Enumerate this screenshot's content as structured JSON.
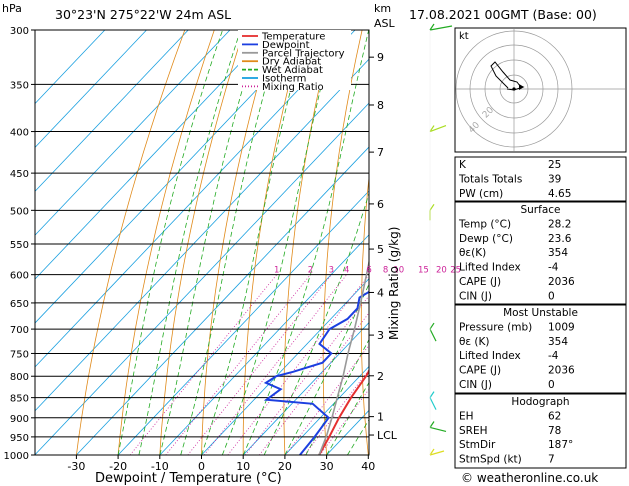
{
  "header": {
    "location": "30°23'N  275°22'W  24m  ASL",
    "datetime": "17.08.2021  00GMT  (Base: 00)",
    "p_unit": "hPa",
    "km_unit": "km",
    "asl_label": "ASL"
  },
  "footer": {
    "credit": "© weatheronline.co.uk"
  },
  "chart_data": {
    "type": "line",
    "title": "",
    "xlabel": "Dewpoint / Temperature (°C)",
    "ylabel": "",
    "right_axis_label": "Mixing Ratio (g/kg)",
    "x_ticks": [
      -30,
      -20,
      -10,
      0,
      10,
      20,
      30,
      40
    ],
    "xlim": [
      -35,
      40
    ],
    "pressure_levels": [
      300,
      350,
      400,
      450,
      500,
      550,
      600,
      650,
      700,
      750,
      800,
      850,
      900,
      950,
      1000
    ],
    "ylim": [
      1000,
      300
    ],
    "y_scale": "log",
    "km_ticks": [
      {
        "label": "9",
        "p": 324
      },
      {
        "label": "8",
        "p": 371
      },
      {
        "label": "7",
        "p": 424
      },
      {
        "label": "6",
        "p": 491
      },
      {
        "label": "5",
        "p": 558
      },
      {
        "label": "4",
        "p": 631
      },
      {
        "label": "3",
        "p": 712
      },
      {
        "label": "2",
        "p": 799
      },
      {
        "label": "1",
        "p": 897
      },
      {
        "label": "LCL",
        "p": 945
      }
    ],
    "mixing_ratio_labels": [
      "1",
      "2",
      "3",
      "4",
      "6",
      "8",
      "10",
      "15",
      "20",
      "25"
    ],
    "legend": [
      {
        "name": "Temperature",
        "color": "#e53030"
      },
      {
        "name": "Dewpoint",
        "color": "#1c3fe0"
      },
      {
        "name": "Parcel Trajectory",
        "color": "#999999"
      },
      {
        "name": "Dry Adiabat",
        "color": "#e08a1a"
      },
      {
        "name": "Wet Adiabat",
        "color": "#22aa22"
      },
      {
        "name": "Isotherm",
        "color": "#1aa0e0"
      },
      {
        "name": "Mixing Ratio",
        "color": "#cc2299"
      }
    ],
    "series": [
      {
        "name": "Temperature",
        "color": "#e53030",
        "points": [
          [
            28.2,
            1000
          ],
          [
            26.5,
            950
          ],
          [
            24.5,
            900
          ],
          [
            22.8,
            850
          ],
          [
            21.5,
            800
          ],
          [
            19.5,
            750
          ],
          [
            17.2,
            700
          ],
          [
            14.5,
            650
          ],
          [
            11.2,
            600
          ],
          [
            7.6,
            560
          ],
          [
            6.5,
            550
          ],
          [
            3.5,
            500
          ],
          [
            -1.5,
            450
          ],
          [
            -7.5,
            400
          ],
          [
            -14,
            350
          ],
          [
            -22,
            300
          ]
        ]
      },
      {
        "name": "Dewpoint",
        "color": "#1c3fe0",
        "points": [
          [
            23.6,
            1000
          ],
          [
            23,
            950
          ],
          [
            22,
            900
          ],
          [
            15,
            865
          ],
          [
            3,
            855
          ],
          [
            4,
            830
          ],
          [
            -1,
            815
          ],
          [
            0,
            800
          ],
          [
            3,
            790
          ],
          [
            8,
            770
          ],
          [
            8,
            750
          ],
          [
            3,
            730
          ],
          [
            2,
            700
          ],
          [
            4,
            680
          ],
          [
            4,
            660
          ],
          [
            2,
            640
          ],
          [
            5,
            610
          ],
          [
            3,
            580
          ],
          [
            3,
            560
          ],
          [
            3,
            550
          ],
          [
            2,
            500
          ],
          [
            -4,
            450
          ],
          [
            -9,
            400
          ],
          [
            -12,
            380
          ],
          [
            -11,
            360
          ],
          [
            -30,
            350
          ],
          [
            -19,
            335
          ],
          [
            -14,
            320
          ],
          [
            -5,
            310
          ],
          [
            -4,
            300
          ]
        ]
      },
      {
        "name": "Parcel Trajectory",
        "color": "#999999",
        "points": [
          [
            28.2,
            1000
          ],
          [
            25.5,
            945
          ],
          [
            22.8,
            900
          ],
          [
            19.5,
            850
          ],
          [
            16,
            800
          ],
          [
            12,
            750
          ],
          [
            8,
            700
          ],
          [
            3.5,
            650
          ],
          [
            -1.5,
            600
          ],
          [
            -7,
            550
          ],
          [
            -12.5,
            500
          ],
          [
            -19,
            450
          ],
          [
            -26,
            400
          ]
        ]
      }
    ]
  },
  "indices": {
    "rows": [
      {
        "label": "K",
        "value": "25"
      },
      {
        "label": "Totals Totals",
        "value": "39"
      },
      {
        "label": "PW (cm)",
        "value": "4.65"
      }
    ]
  },
  "surface": {
    "title": "Surface",
    "rows": [
      {
        "label": "Temp (°C)",
        "value": "28.2"
      },
      {
        "label": "Dewp (°C)",
        "value": "23.6"
      },
      {
        "label": "θε(K)",
        "value": "354"
      },
      {
        "label": "Lifted Index",
        "value": "-4"
      },
      {
        "label": "CAPE (J)",
        "value": "2036"
      },
      {
        "label": "CIN (J)",
        "value": "0"
      }
    ]
  },
  "unstable": {
    "title": "Most Unstable",
    "rows": [
      {
        "label": "Pressure (mb)",
        "value": "1009"
      },
      {
        "label": "θε (K)",
        "value": "354"
      },
      {
        "label": "Lifted Index",
        "value": "-4"
      },
      {
        "label": "CAPE (J)",
        "value": "2036"
      },
      {
        "label": "CIN (J)",
        "value": "0"
      }
    ]
  },
  "hodo": {
    "title": "Hodograph",
    "rows": [
      {
        "label": "EH",
        "value": "62"
      },
      {
        "label": "SREH",
        "value": "78"
      },
      {
        "label": "StmDir",
        "value": "187°"
      },
      {
        "label": "StmSpd (kt)",
        "value": "7"
      }
    ]
  },
  "hodograph_box": {
    "unit": "kt",
    "ring_labels": [
      "20",
      "40"
    ]
  }
}
